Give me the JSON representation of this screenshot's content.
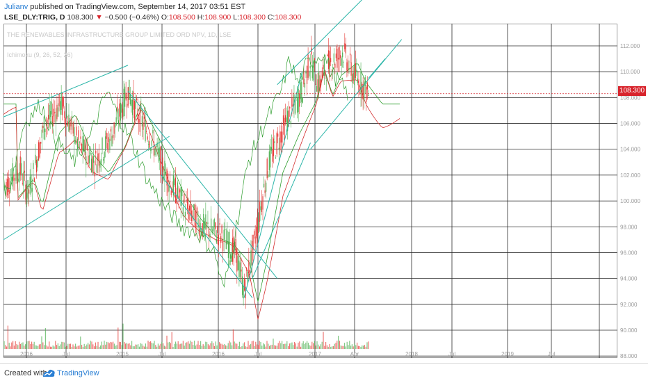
{
  "header": {
    "author": "Julianv",
    "published_text": " published on TradingView.com, September 14, 2017 03:51 EST",
    "symbol": "LSE_DLY:TRIG, D",
    "last_price": "108.300",
    "change_arrow": "▼",
    "change": "−0.500 (−0.46%)",
    "o_label": "O:",
    "o_value": "108.500",
    "h_label": "H:",
    "h_value": "108.900",
    "l_label": "L:",
    "l_value": "108.300",
    "c_label": "C:",
    "c_value": "108.300"
  },
  "watermark": {
    "line1": "THE RENEWABLES INFRASTRUCTURE GROUP LIMITED ORD NPV, 1D, LSE",
    "line2": "Ichimoku (9, 26, 52, 26)"
  },
  "price_tag": "108.300",
  "footer": {
    "created_with": "Created with",
    "brand": "TradingView"
  },
  "colors": {
    "up": "#4caf50",
    "down": "#e53935",
    "lagging_span": "#2f9e2f",
    "span_b": "#d32f2f",
    "trendline": "#2ab5a8",
    "price_line": "#d8242c",
    "grid": "#2a2a2a",
    "accent": "#2a7fd4"
  },
  "chart_data": {
    "type": "candlestick",
    "symbol": "LSE_DLY:TRIG",
    "timeframe": "D",
    "indicator": "Ichimoku (9, 26, 52, 26)",
    "ylim": [
      89,
      118
    ],
    "y_ticks": [
      "112.000",
      "110.000",
      "108.000",
      "106.000",
      "104.000",
      "102.000",
      "100.000",
      "98.000",
      "96.000",
      "94.000",
      "92.000",
      "90.000",
      "88.000"
    ],
    "x_ticks": [
      "2016",
      "Jul",
      "2015",
      "Jul",
      "2016",
      "Jul",
      "2017",
      "Apr",
      "2018",
      "Jul",
      "2019",
      "Jul"
    ],
    "last_price": 108.3,
    "price_path": [
      [
        "2014-01",
        101.0
      ],
      [
        "2014-03",
        102.5
      ],
      [
        "2014-04",
        100.5
      ],
      [
        "2014-06",
        106.0
      ],
      [
        "2014-08",
        107.5
      ],
      [
        "2014-10",
        104.5
      ],
      [
        "2014-12",
        103.0
      ],
      [
        "2015-02",
        105.0
      ],
      [
        "2015-04",
        108.5
      ],
      [
        "2015-05",
        107.0
      ],
      [
        "2015-07",
        104.5
      ],
      [
        "2015-09",
        101.5
      ],
      [
        "2015-11",
        99.5
      ],
      [
        "2016-01",
        98.0
      ],
      [
        "2016-03",
        97.5
      ],
      [
        "2016-05",
        96.0
      ],
      [
        "2016-06",
        93.0
      ],
      [
        "2016-07",
        96.0
      ],
      [
        "2016-09",
        103.0
      ],
      [
        "2016-11",
        106.0
      ],
      [
        "2017-01",
        108.5
      ],
      [
        "2017-02",
        111.0
      ],
      [
        "2017-03",
        109.0
      ],
      [
        "2017-04",
        110.5
      ],
      [
        "2017-06",
        111.5
      ],
      [
        "2017-07",
        110.0
      ],
      [
        "2017-09",
        108.3
      ]
    ],
    "trendlines": [
      {
        "from": [
          "2014-01",
          106.5
        ],
        "to": [
          "2015-04",
          110.5
        ]
      },
      {
        "from": [
          "2014-01",
          97.0
        ],
        "to": [
          "2015-09",
          105.0
        ]
      },
      {
        "from": [
          "2015-04",
          108.5
        ],
        "to": [
          "2016-10",
          94.0
        ]
      },
      {
        "from": [
          "2015-08",
          102.0
        ],
        "to": [
          "2016-07",
          92.5
        ]
      },
      {
        "from": [
          "2016-06",
          92.5
        ],
        "to": [
          "2017-01",
          110.0
        ]
      },
      {
        "from": [
          "2016-07",
          94.0
        ],
        "to": [
          "2017-02",
          104.5
        ]
      },
      {
        "from": [
          "2017-02",
          104.0
        ],
        "to": [
          "2018-01",
          112.5
        ]
      },
      {
        "from": [
          "2016-10",
          109.0
        ],
        "to": [
          "2017-12",
          118.0
        ]
      },
      {
        "from": [
          "2017-09",
          109.5
        ],
        "to": [
          "2017-11",
          111.0
        ]
      }
    ]
  }
}
